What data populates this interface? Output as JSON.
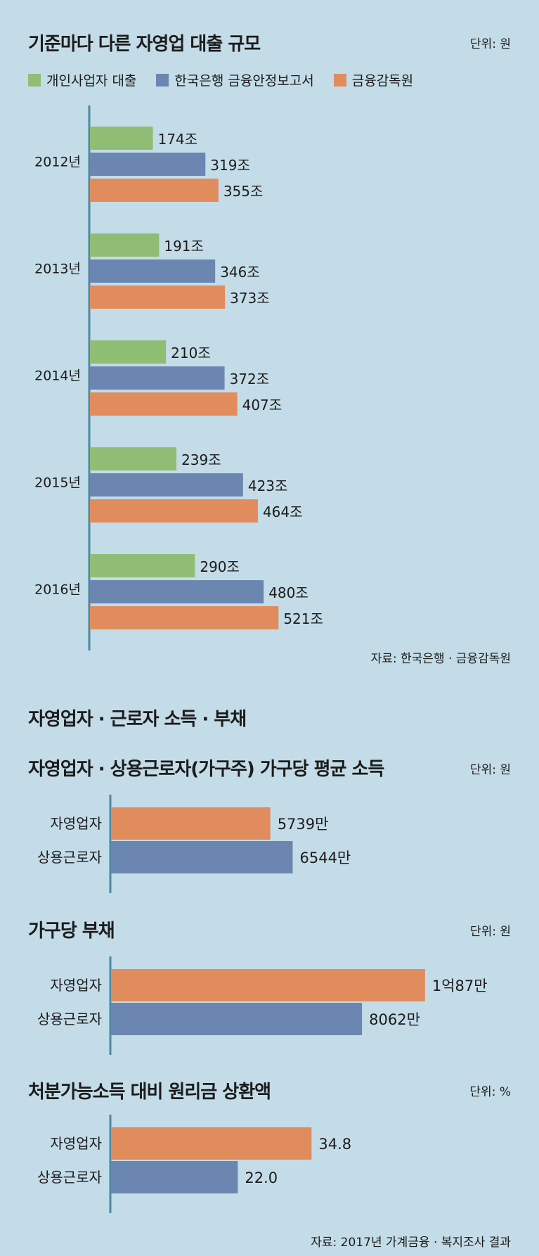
{
  "colors": {
    "green": "#8fbd74",
    "blue": "#6b86b0",
    "orange": "#e08c5c",
    "axis": "#4a8aa6"
  },
  "sections": {
    "heading": "자영업자 · 근로자 소득 · 부채"
  },
  "chart_data": [
    {
      "type": "bar",
      "orientation": "horizontal",
      "title": "기준마다 다른 자영업 대출 규모",
      "unit": "단위: 원",
      "source": "자료: 한국은행 · 금융감독원",
      "legend_placement": "top",
      "categories": [
        "2012년",
        "2013년",
        "2014년",
        "2015년",
        "2016년"
      ],
      "series": [
        {
          "name": "개인사업자 대출",
          "color": "green",
          "values": [
            174,
            191,
            210,
            239,
            290
          ],
          "labels": [
            "174조",
            "191조",
            "210조",
            "239조",
            "290조"
          ]
        },
        {
          "name": "한국은행 금융안정보고서",
          "color": "blue",
          "values": [
            319,
            346,
            372,
            423,
            480
          ],
          "labels": [
            "319조",
            "346조",
            "372조",
            "423조",
            "480조"
          ]
        },
        {
          "name": "금융감독원",
          "color": "orange",
          "values": [
            355,
            373,
            407,
            464,
            521
          ],
          "labels": [
            "355조",
            "373조",
            "407조",
            "464조",
            "521조"
          ]
        }
      ]
    },
    {
      "type": "bar",
      "orientation": "horizontal",
      "title": "자영업자 · 상용근로자(가구주) 가구당 평균 소득",
      "unit": "단위: 원",
      "categories": [
        "자영업자",
        "상용근로자"
      ],
      "values": [
        5739,
        6544
      ],
      "colors": [
        "orange",
        "blue"
      ],
      "labels": [
        "5739만",
        "6544만"
      ]
    },
    {
      "type": "bar",
      "orientation": "horizontal",
      "title": "가구당 부채",
      "unit": "단위: 원",
      "categories": [
        "자영업자",
        "상용근로자"
      ],
      "values": [
        10087,
        8062
      ],
      "colors": [
        "orange",
        "blue"
      ],
      "labels": [
        "1억87만",
        "8062만"
      ]
    },
    {
      "type": "bar",
      "orientation": "horizontal",
      "title": "처분가능소득 대비 원리금 상환액",
      "unit": "단위: %",
      "source": "자료: 2017년 가계금융 · 복지조사 결과",
      "categories": [
        "자영업자",
        "상용근로자"
      ],
      "values": [
        34.8,
        22.0
      ],
      "colors": [
        "orange",
        "blue"
      ],
      "labels": [
        "34.8",
        "22.0"
      ]
    }
  ]
}
